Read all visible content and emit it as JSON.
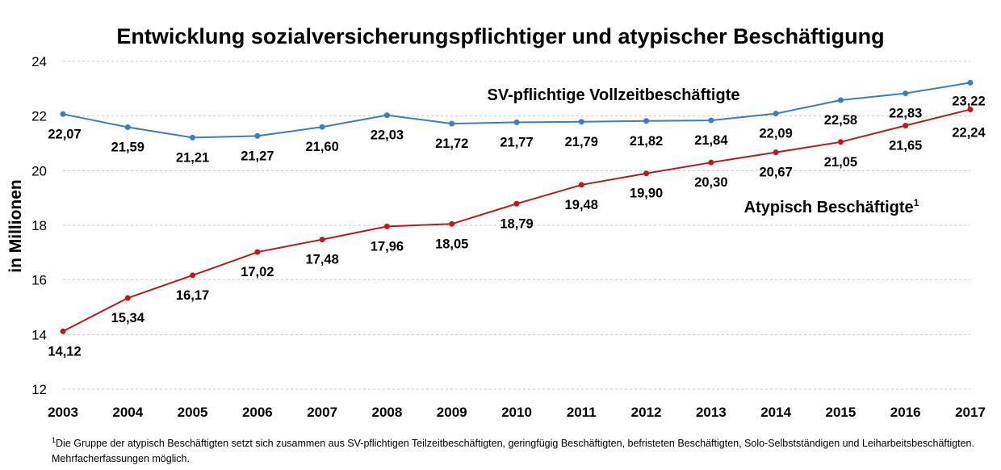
{
  "chart_data": {
    "type": "line",
    "title": "Entwicklung sozialversicherungspflichtiger und atypischer Beschäftigung",
    "ylabel": "in Millionen",
    "xlabel": "",
    "ylim": [
      12,
      24
    ],
    "yticks": [
      12,
      14,
      16,
      18,
      20,
      22,
      24
    ],
    "x": [
      "2003",
      "2004",
      "2005",
      "2006",
      "2007",
      "2008",
      "2009",
      "2010",
      "2011",
      "2012",
      "2013",
      "2014",
      "2015",
      "2016",
      "2017"
    ],
    "grid": "horizontal dashed",
    "series": [
      {
        "name": "SV-pflichtige Vollzeitbeschäftigte",
        "color": "#3b7dc0",
        "values": [
          22.07,
          21.59,
          21.21,
          21.27,
          21.6,
          22.03,
          21.72,
          21.77,
          21.79,
          21.82,
          21.84,
          22.09,
          22.58,
          22.83,
          23.22
        ],
        "labels": [
          "22,07",
          "21,59",
          "21,21",
          "21,27",
          "21,60",
          "22,03",
          "21,72",
          "21,77",
          "21,79",
          "21,82",
          "21,84",
          "22,09",
          "22,58",
          "22,83",
          "23,22"
        ]
      },
      {
        "name": "Atypisch Beschäftigte",
        "name_sup": "1",
        "color": "#c0171c",
        "values": [
          14.12,
          15.34,
          16.17,
          17.02,
          17.48,
          17.96,
          18.05,
          18.79,
          19.48,
          19.9,
          20.3,
          20.67,
          21.05,
          21.65,
          22.24
        ],
        "labels": [
          "14,12",
          "15,34",
          "16,17",
          "17,02",
          "17,48",
          "17,96",
          "18,05",
          "18,79",
          "19,48",
          "19,90",
          "20,30",
          "20,67",
          "21,05",
          "21,65",
          "22,24"
        ]
      }
    ],
    "footnote": {
      "sup": "1",
      "text": "Die Gruppe der atypisch Beschäftigten setzt sich zusammen aus SV-pflichtigen Teilzeitbeschäftigten, geringfügig Beschäftigten, befristeten Beschäftigten, Solo-Selbstständigen und Leiharbeitsbeschäftigten. Mehrfacherfassungen möglich."
    }
  }
}
